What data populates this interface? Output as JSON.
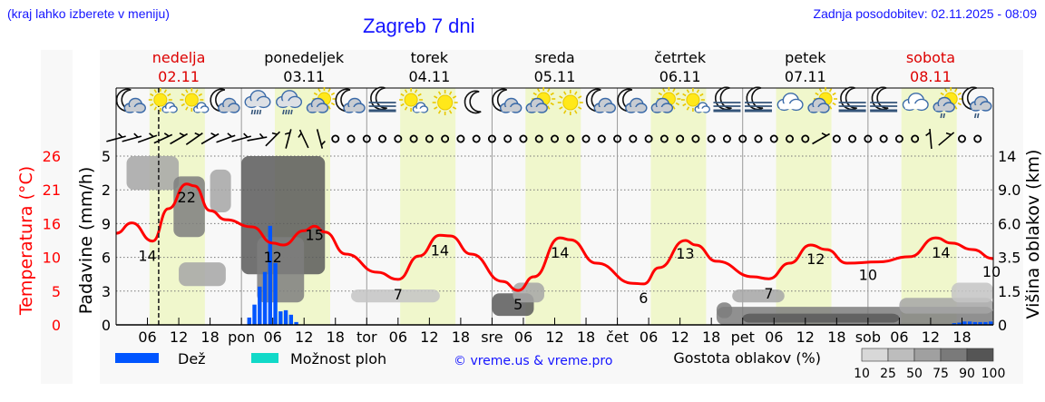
{
  "header": {
    "hint": "(kraj lahko izberete v meniju)",
    "title": "Zagreb 7 dni",
    "updated": "Zadnja posodobitev: 02.11.2025 - 08:09"
  },
  "days": [
    {
      "name": "nedelja",
      "date": "02.11",
      "weekend": true
    },
    {
      "name": "ponedeljek",
      "date": "03.11",
      "weekend": false
    },
    {
      "name": "torek",
      "date": "04.11",
      "weekend": false
    },
    {
      "name": "sreda",
      "date": "05.11",
      "weekend": false
    },
    {
      "name": "četrtek",
      "date": "06.11",
      "weekend": false
    },
    {
      "name": "petek",
      "date": "07.11",
      "weekend": false
    },
    {
      "name": "sobota",
      "date": "08.11",
      "weekend": true
    }
  ],
  "colors": {
    "temperature": "#ff0000",
    "weekend": "#dd0000",
    "rain": "#0055ff",
    "showers": "#11d9c8",
    "daylight": "#f0f7cc",
    "link": "#1515ff"
  },
  "icons": [
    "moon-cloud",
    "sun-small-cloud",
    "sun-small-cloud",
    "moon-cloud",
    "cloud-rain",
    "cloud-rain",
    "sun-cloud",
    "moon-cloud",
    "moon-fog",
    "sun-small-cloud",
    "sun",
    "moon",
    "moon-cloud",
    "sun-cloud",
    "sun",
    "moon-cloud",
    "moon-cloud",
    "sun-cloud",
    "sun-small-cloud",
    "moon-fog",
    "moon-fog",
    "cloud",
    "sun-cloud",
    "moon-fog",
    "moon-fog",
    "cloud",
    "sun-cloud-drizzle",
    "moon-cloud-drizzle"
  ],
  "wind": [
    -15,
    -15,
    -20,
    -25,
    -30,
    -35,
    -30,
    -20,
    -15,
    -10,
    -45,
    -75,
    -115,
    75,
    null,
    null,
    null,
    null,
    null,
    null,
    null,
    null,
    null,
    null,
    null,
    null,
    null,
    null,
    null,
    null,
    null,
    null,
    null,
    null,
    null,
    null,
    null,
    null,
    null,
    null,
    null,
    null,
    null,
    null,
    null,
    -30,
    null,
    null,
    null,
    null,
    null,
    null,
    -95,
    -40,
    null,
    null
  ],
  "chart_data": {
    "type": "line",
    "x_unit": "hour from 02.11 00:00",
    "x_ticks": [
      "06",
      "12",
      "18",
      "pon",
      "06",
      "12",
      "18",
      "tor",
      "06",
      "12",
      "18",
      "sre",
      "06",
      "12",
      "18",
      "čet",
      "06",
      "12",
      "18",
      "pet",
      "06",
      "12",
      "18",
      "sob",
      "06",
      "12",
      "18"
    ],
    "current_time_hour": 8.15,
    "daylight": [
      6.4,
      17.0
    ],
    "temperature": {
      "axis_label": "Temperatura (°C)",
      "ticks": [
        "26",
        "21",
        "16",
        "10",
        "5",
        "0"
      ],
      "ylim": [
        0,
        26
      ],
      "points": [
        [
          0,
          14.1
        ],
        [
          3,
          15.7
        ],
        [
          7,
          12.9
        ],
        [
          10,
          17.9
        ],
        [
          13.5,
          21.7
        ],
        [
          15,
          21.4
        ],
        [
          18,
          17.6
        ],
        [
          21,
          16.2
        ],
        [
          26,
          15.1
        ],
        [
          30,
          12.6
        ],
        [
          32,
          12.3
        ],
        [
          36,
          14.5
        ],
        [
          38,
          15.2
        ],
        [
          40,
          14.3
        ],
        [
          44,
          10.9
        ],
        [
          50,
          8.1
        ],
        [
          54,
          7.0
        ],
        [
          58,
          10.6
        ],
        [
          62,
          13.8
        ],
        [
          64,
          13.7
        ],
        [
          68,
          10.9
        ],
        [
          74,
          6.7
        ],
        [
          77,
          5.3
        ],
        [
          80,
          7.4
        ],
        [
          85,
          13.4
        ],
        [
          87,
          13.1
        ],
        [
          92,
          9.5
        ],
        [
          99,
          6.4
        ],
        [
          101,
          6.3
        ],
        [
          104,
          8.8
        ],
        [
          109,
          13.0
        ],
        [
          111,
          12.3
        ],
        [
          115,
          9.8
        ],
        [
          122,
          7.4
        ],
        [
          125,
          7.1
        ],
        [
          129,
          9.5
        ],
        [
          133,
          12.3
        ],
        [
          136,
          11.6
        ],
        [
          140,
          9.5
        ],
        [
          146,
          9.7
        ],
        [
          152,
          10.5
        ],
        [
          157,
          13.4
        ],
        [
          160,
          12.6
        ],
        [
          164,
          11.6
        ],
        [
          168,
          10.2
        ]
      ],
      "labels": [
        [
          6,
          "14"
        ],
        [
          13.5,
          "22"
        ],
        [
          30,
          "12"
        ],
        [
          38,
          "15"
        ],
        [
          54,
          "7"
        ],
        [
          62,
          "14"
        ],
        [
          77,
          "5"
        ],
        [
          85,
          "14"
        ],
        [
          101,
          "6"
        ],
        [
          109,
          "13"
        ],
        [
          125,
          "7"
        ],
        [
          134,
          "12"
        ],
        [
          144,
          "10"
        ],
        [
          158,
          "14"
        ],
        [
          168,
          "10"
        ]
      ]
    },
    "precipitation": {
      "axis_label": "Padavine (mm/h)",
      "ticks": [
        "0",
        "3",
        "6",
        "9",
        "2",
        "5"
      ],
      "series_name": "Dež",
      "bars": [
        [
          25.5,
          0.65
        ],
        [
          26.5,
          1.8
        ],
        [
          27.5,
          3.4
        ],
        [
          28.5,
          4.7
        ],
        [
          29.5,
          8.8
        ],
        [
          30.5,
          5.5
        ],
        [
          31.5,
          1.2
        ],
        [
          32.5,
          1.3
        ],
        [
          33.5,
          0.9
        ],
        [
          34.5,
          0.25
        ],
        [
          160.5,
          0.15
        ],
        [
          161.5,
          0.2
        ],
        [
          162.5,
          0.3
        ],
        [
          163.5,
          0.3
        ],
        [
          164.5,
          0.25
        ],
        [
          165.5,
          0.25
        ],
        [
          166.5,
          0.25
        ],
        [
          167.5,
          0.3
        ]
      ]
    },
    "cloud_height": {
      "axis_label": "Višina oblakov (km)",
      "ticks": [
        "0",
        "1.5",
        "3.5",
        "6.0",
        "9.0",
        "14"
      ],
      "patches": [
        [
          2,
          12,
          9,
          14,
          50
        ],
        [
          11,
          17,
          5,
          11,
          75
        ],
        [
          18,
          22,
          7,
          12,
          50
        ],
        [
          12,
          21,
          1.8,
          3.2,
          50
        ],
        [
          24,
          40,
          2.5,
          14,
          90
        ],
        [
          27,
          36,
          1,
          5,
          75
        ],
        [
          45,
          62,
          1.0,
          1.6,
          25
        ],
        [
          72,
          80,
          0.4,
          1.4,
          90
        ],
        [
          76,
          82,
          1.0,
          2.0,
          50
        ],
        [
          115,
          118,
          0.3,
          1.0,
          75
        ],
        [
          118,
          128,
          1.0,
          1.6,
          50
        ],
        [
          115,
          168,
          0,
          0.8,
          75
        ],
        [
          120,
          150,
          0.1,
          0.5,
          90
        ],
        [
          150,
          168,
          0.5,
          1.2,
          50
        ],
        [
          160,
          168,
          1.0,
          2.0,
          25
        ]
      ]
    },
    "grid": true
  },
  "legend": {
    "rain_label": "Dež",
    "showers_label": "Možnost ploh",
    "credit": "© vreme.us & vreme.pro",
    "cloud_density_label": "Gostota oblakov (%)",
    "cloud_density_ticks": [
      "10",
      "25",
      "50",
      "75",
      "90",
      "100"
    ]
  }
}
